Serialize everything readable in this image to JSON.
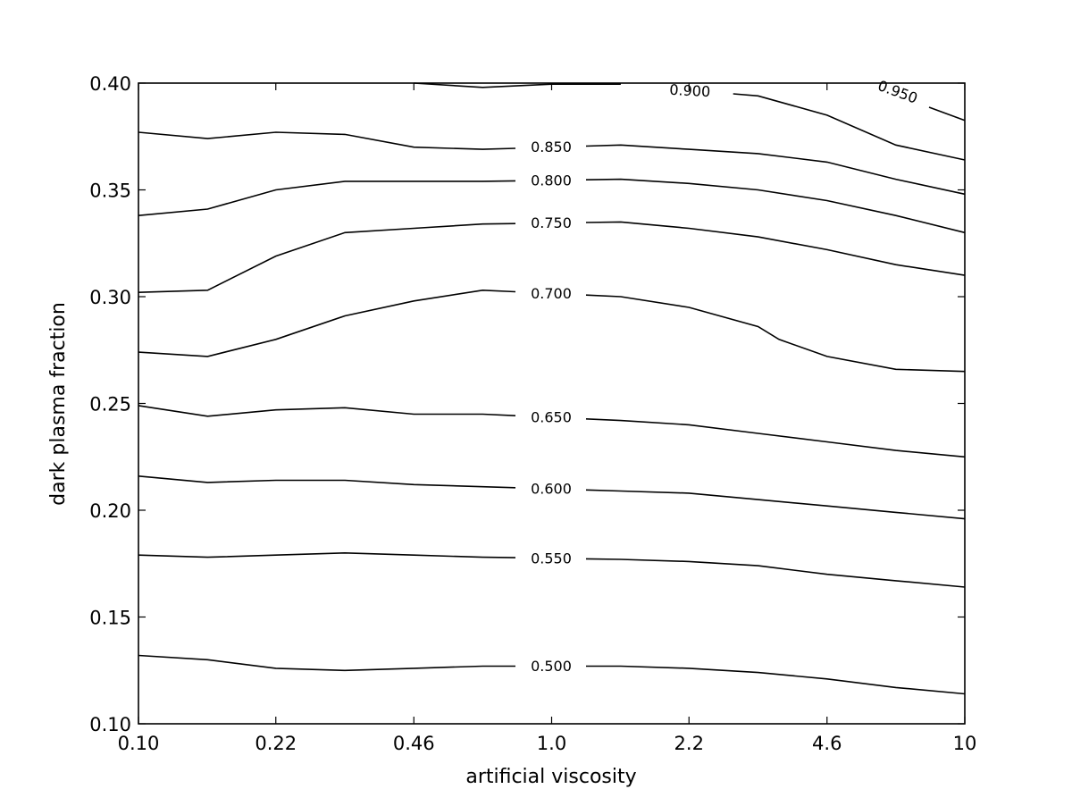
{
  "chart_data": {
    "type": "contour",
    "title": "",
    "xlabel": "artificial viscosity",
    "ylabel": "dark plasma fraction",
    "xscale": "log",
    "xlim": [
      0.1,
      10
    ],
    "ylim": [
      0.1,
      0.4
    ],
    "xticks": [
      0.1,
      0.215,
      0.464,
      1.0,
      2.15,
      4.64,
      10
    ],
    "xtick_labels": [
      "0.10",
      "0.22",
      "0.46",
      "1.0",
      "2.2",
      "4.6",
      "10"
    ],
    "yticks": [
      0.1,
      0.15,
      0.2,
      0.25,
      0.3,
      0.35,
      0.4
    ],
    "ytick_labels": [
      "0.10",
      "0.15",
      "0.20",
      "0.25",
      "0.30",
      "0.35",
      "0.40"
    ],
    "grid": false,
    "contours": [
      {
        "level": "0.500",
        "points": [
          [
            0.1,
            0.132
          ],
          [
            0.147,
            0.13
          ],
          [
            0.215,
            0.126
          ],
          [
            0.316,
            0.125
          ],
          [
            0.464,
            0.126
          ],
          [
            0.681,
            0.127
          ],
          [
            1.47,
            0.127
          ],
          [
            2.15,
            0.126
          ],
          [
            3.16,
            0.124
          ],
          [
            4.64,
            0.121
          ],
          [
            6.81,
            0.117
          ],
          [
            10,
            0.114
          ]
        ]
      },
      {
        "level": "0.550",
        "points": [
          [
            0.1,
            0.179
          ],
          [
            0.147,
            0.178
          ],
          [
            0.215,
            0.179
          ],
          [
            0.316,
            0.18
          ],
          [
            0.464,
            0.179
          ],
          [
            0.681,
            0.178
          ],
          [
            1.47,
            0.177
          ],
          [
            2.15,
            0.176
          ],
          [
            3.16,
            0.174
          ],
          [
            4.64,
            0.17
          ],
          [
            6.81,
            0.167
          ],
          [
            10,
            0.164
          ]
        ]
      },
      {
        "level": "0.600",
        "points": [
          [
            0.1,
            0.216
          ],
          [
            0.147,
            0.213
          ],
          [
            0.215,
            0.214
          ],
          [
            0.316,
            0.214
          ],
          [
            0.464,
            0.212
          ],
          [
            0.681,
            0.211
          ],
          [
            1.47,
            0.209
          ],
          [
            2.15,
            0.208
          ],
          [
            3.16,
            0.205
          ],
          [
            4.64,
            0.202
          ],
          [
            6.81,
            0.199
          ],
          [
            10,
            0.196
          ]
        ]
      },
      {
        "level": "0.650",
        "points": [
          [
            0.1,
            0.249
          ],
          [
            0.147,
            0.244
          ],
          [
            0.215,
            0.247
          ],
          [
            0.316,
            0.248
          ],
          [
            0.464,
            0.245
          ],
          [
            0.681,
            0.245
          ],
          [
            1.47,
            0.242
          ],
          [
            2.15,
            0.24
          ],
          [
            3.16,
            0.236
          ],
          [
            4.64,
            0.232
          ],
          [
            6.81,
            0.228
          ],
          [
            10,
            0.225
          ]
        ]
      },
      {
        "level": "0.700",
        "points": [
          [
            0.1,
            0.274
          ],
          [
            0.147,
            0.272
          ],
          [
            0.215,
            0.28
          ],
          [
            0.316,
            0.291
          ],
          [
            0.464,
            0.298
          ],
          [
            0.681,
            0.303
          ],
          [
            1.47,
            0.3
          ],
          [
            2.15,
            0.295
          ],
          [
            3.16,
            0.286
          ],
          [
            3.55,
            0.28
          ],
          [
            4.64,
            0.272
          ],
          [
            6.81,
            0.266
          ],
          [
            10,
            0.265
          ]
        ]
      },
      {
        "level": "0.750",
        "points": [
          [
            0.1,
            0.302
          ],
          [
            0.147,
            0.303
          ],
          [
            0.215,
            0.319
          ],
          [
            0.316,
            0.33
          ],
          [
            0.464,
            0.332
          ],
          [
            0.681,
            0.334
          ],
          [
            1.47,
            0.335
          ],
          [
            2.15,
            0.332
          ],
          [
            3.16,
            0.328
          ],
          [
            4.64,
            0.322
          ],
          [
            6.81,
            0.315
          ],
          [
            10,
            0.31
          ]
        ]
      },
      {
        "level": "0.800",
        "points": [
          [
            0.1,
            0.338
          ],
          [
            0.147,
            0.341
          ],
          [
            0.215,
            0.35
          ],
          [
            0.316,
            0.354
          ],
          [
            0.464,
            0.354
          ],
          [
            0.681,
            0.354
          ],
          [
            1.47,
            0.355
          ],
          [
            2.15,
            0.353
          ],
          [
            3.16,
            0.35
          ],
          [
            4.64,
            0.345
          ],
          [
            6.81,
            0.338
          ],
          [
            10,
            0.33
          ]
        ]
      },
      {
        "level": "0.850",
        "points": [
          [
            0.1,
            0.377
          ],
          [
            0.147,
            0.374
          ],
          [
            0.215,
            0.377
          ],
          [
            0.316,
            0.376
          ],
          [
            0.464,
            0.37
          ],
          [
            0.681,
            0.369
          ],
          [
            1.47,
            0.371
          ],
          [
            2.15,
            0.369
          ],
          [
            3.16,
            0.367
          ],
          [
            4.64,
            0.363
          ],
          [
            6.81,
            0.355
          ],
          [
            10,
            0.348
          ]
        ]
      },
      {
        "level": "0.900",
        "points": [
          [
            0.464,
            0.4
          ],
          [
            0.681,
            0.398
          ],
          [
            1.0,
            0.3995
          ],
          [
            1.47,
            0.3995
          ],
          [
            1.8,
            0.398
          ],
          [
            2.75,
            0.395
          ],
          [
            3.16,
            0.394
          ],
          [
            4.64,
            0.385
          ],
          [
            6.81,
            0.371
          ],
          [
            10,
            0.364
          ]
        ]
      },
      {
        "level": "0.950",
        "points": [
          [
            6.4,
            0.3995
          ],
          [
            10,
            0.3825
          ]
        ]
      }
    ]
  }
}
